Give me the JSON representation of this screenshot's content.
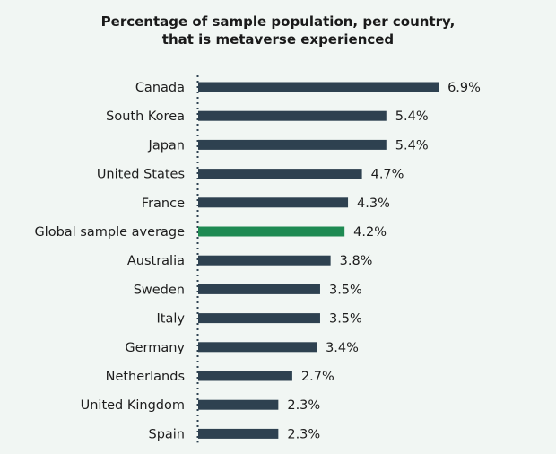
{
  "chart_data": {
    "type": "bar",
    "orientation": "horizontal",
    "title_lines": [
      "Percentage of sample population, per country,",
      "that is metaverse experienced"
    ],
    "categories": [
      "Canada",
      "South Korea",
      "Japan",
      "United States",
      "France",
      "Global sample average",
      "Australia",
      "Sweden",
      "Italy",
      "Germany",
      "Netherlands",
      "United Kingdom",
      "Spain"
    ],
    "values": [
      6.9,
      5.4,
      5.4,
      4.7,
      4.3,
      4.2,
      3.8,
      3.5,
      3.5,
      3.4,
      2.7,
      2.3,
      2.3
    ],
    "value_labels": [
      "6.9%",
      "5.4%",
      "5.4%",
      "4.7%",
      "4.3%",
      "4.2%",
      "3.8%",
      "3.5%",
      "3.5%",
      "3.4%",
      "2.7%",
      "2.3%",
      "2.3%"
    ],
    "highlight_category": "Global sample average",
    "colors": {
      "bar": "#2e4150",
      "highlight": "#1e8a52",
      "axis": "#2e4150"
    },
    "grid": false,
    "legend": "none"
  }
}
